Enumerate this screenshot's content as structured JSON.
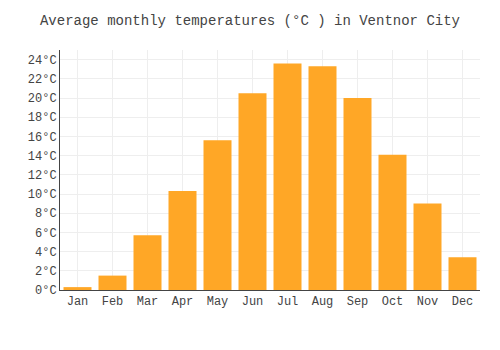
{
  "chart_data": {
    "type": "bar",
    "title": "Average monthly temperatures (°C ) in Ventnor City",
    "categories": [
      "Jan",
      "Feb",
      "Mar",
      "Apr",
      "May",
      "Jun",
      "Jul",
      "Aug",
      "Sep",
      "Oct",
      "Nov",
      "Dec"
    ],
    "values": [
      0.3,
      1.5,
      5.7,
      10.3,
      15.6,
      20.5,
      23.6,
      23.3,
      20.0,
      14.1,
      9.0,
      3.4
    ],
    "color": "#FFA726",
    "ylim": [
      0,
      25
    ],
    "yticks": [
      {
        "value": 0,
        "label": "0°C"
      },
      {
        "value": 2,
        "label": "2°C"
      },
      {
        "value": 4,
        "label": "4°C"
      },
      {
        "value": 6,
        "label": "6°C"
      },
      {
        "value": 8,
        "label": "8°C"
      },
      {
        "value": 10,
        "label": "10°C"
      },
      {
        "value": 12,
        "label": "12°C"
      },
      {
        "value": 14,
        "label": "14°C"
      },
      {
        "value": 16,
        "label": "16°C"
      },
      {
        "value": 18,
        "label": "18°C"
      },
      {
        "value": 20,
        "label": "20°C"
      },
      {
        "value": 22,
        "label": "22°C"
      },
      {
        "value": 24,
        "label": "24°C"
      }
    ],
    "grid": true
  }
}
